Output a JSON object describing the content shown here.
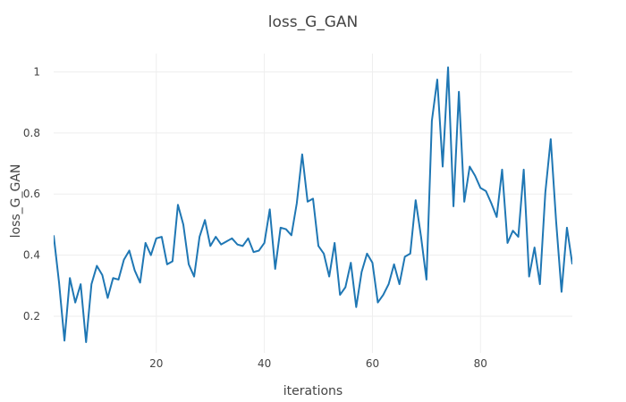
{
  "chart_data": {
    "type": "line",
    "title": "loss_G_GAN",
    "xlabel": "iterations",
    "ylabel": "loss_G_GAN",
    "xlim": [
      1,
      97
    ],
    "ylim": [
      0.08,
      1.06
    ],
    "grid": true,
    "legend": "none",
    "line_color": "#1f77b4",
    "x_ticks": [
      20,
      40,
      60,
      80
    ],
    "y_ticks": [
      0.2,
      0.4,
      0.6,
      0.8,
      1
    ],
    "y_tick_labels": [
      "0.2",
      "0.4",
      "0.6",
      "0.8",
      "1"
    ],
    "x_tick_labels": [
      "20",
      "40",
      "60",
      "80"
    ],
    "series": [
      {
        "x": [
          1,
          2,
          3,
          4,
          5,
          6,
          7,
          8,
          9,
          10,
          11,
          12,
          13,
          14,
          15,
          16,
          17,
          18,
          19,
          20,
          21,
          22,
          23,
          24,
          25,
          26,
          27,
          28,
          29,
          30,
          31,
          32,
          33,
          34,
          35,
          36,
          37,
          38,
          39,
          40,
          41,
          42,
          43,
          44,
          45,
          46,
          47,
          48,
          49,
          50,
          51,
          52,
          53,
          54,
          55,
          56,
          57,
          58,
          59,
          60,
          61,
          62,
          63,
          64,
          65,
          66,
          67,
          68,
          69,
          70,
          71,
          72,
          73,
          74,
          75,
          76,
          77,
          78,
          79,
          80,
          81,
          82,
          83,
          84,
          85,
          86,
          87,
          88,
          89,
          90,
          91,
          92,
          93,
          94,
          95,
          96,
          97
        ],
        "values": [
          0.465,
          0.31,
          0.12,
          0.325,
          0.245,
          0.305,
          0.115,
          0.305,
          0.365,
          0.335,
          0.26,
          0.325,
          0.32,
          0.385,
          0.415,
          0.35,
          0.31,
          0.44,
          0.4,
          0.455,
          0.46,
          0.37,
          0.38,
          0.565,
          0.5,
          0.37,
          0.33,
          0.46,
          0.515,
          0.43,
          0.46,
          0.435,
          0.445,
          0.455,
          0.435,
          0.43,
          0.455,
          0.41,
          0.415,
          0.44,
          0.55,
          0.355,
          0.49,
          0.485,
          0.465,
          0.57,
          0.73,
          0.575,
          0.585,
          0.43,
          0.405,
          0.33,
          0.44,
          0.27,
          0.295,
          0.375,
          0.23,
          0.345,
          0.405,
          0.375,
          0.245,
          0.27,
          0.305,
          0.37,
          0.305,
          0.395,
          0.405,
          0.58,
          0.46,
          0.32,
          0.84,
          0.975,
          0.69,
          1.015,
          0.56,
          0.935,
          0.575,
          0.69,
          0.66,
          0.62,
          0.61,
          0.57,
          0.525,
          0.68,
          0.44,
          0.48,
          0.46,
          0.68,
          0.33,
          0.425,
          0.305,
          0.605,
          0.78,
          0.51,
          0.28,
          0.49,
          0.37
        ]
      }
    ]
  }
}
